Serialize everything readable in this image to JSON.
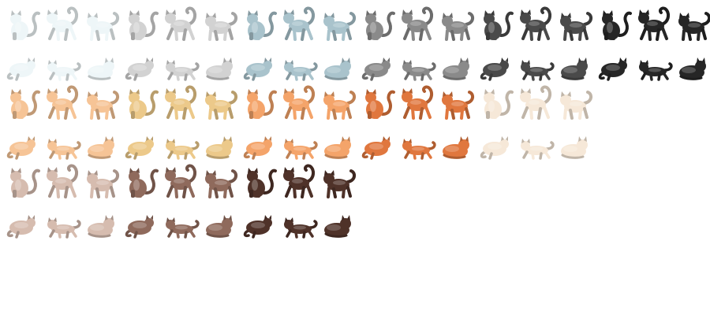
{
  "sheet": {
    "cell": 50,
    "poses": [
      "sit",
      "walk",
      "stand",
      "loaf"
    ],
    "rows": [
      {
        "pose_set": "upright",
        "colors": [
          {
            "name": "white",
            "hex": "#eef6f8"
          },
          {
            "name": "light-gray",
            "hex": "#d2d2d2"
          },
          {
            "name": "blue-gray",
            "hex": "#a9c3cc"
          },
          {
            "name": "gray",
            "hex": "#8a8a8a"
          },
          {
            "name": "dark-gray",
            "hex": "#4a4a4a"
          },
          {
            "name": "black",
            "hex": "#262626"
          }
        ]
      },
      {
        "pose_set": "lying",
        "colors": [
          {
            "name": "white",
            "hex": "#eef6f8"
          },
          {
            "name": "light-gray",
            "hex": "#d2d2d2"
          },
          {
            "name": "blue-gray",
            "hex": "#a9c3cc"
          },
          {
            "name": "gray",
            "hex": "#8a8a8a"
          },
          {
            "name": "dark-gray",
            "hex": "#4a4a4a"
          },
          {
            "name": "black",
            "hex": "#262626"
          }
        ]
      },
      {
        "pose_set": "upright",
        "colors": [
          {
            "name": "pale-ginger",
            "hex": "#f6c496"
          },
          {
            "name": "cream-gold",
            "hex": "#ecc98a"
          },
          {
            "name": "ginger",
            "hex": "#f4a46a"
          },
          {
            "name": "red-ginger",
            "hex": "#e0773e"
          },
          {
            "name": "cream",
            "hex": "#f6e8d8"
          }
        ]
      },
      {
        "pose_set": "lying",
        "colors": [
          {
            "name": "pale-ginger",
            "hex": "#f6c496"
          },
          {
            "name": "cream-gold",
            "hex": "#ecc98a"
          },
          {
            "name": "ginger",
            "hex": "#f4a46a"
          },
          {
            "name": "red-ginger",
            "hex": "#e0773e"
          },
          {
            "name": "cream",
            "hex": "#f6e8d8"
          }
        ]
      },
      {
        "pose_set": "upright",
        "colors": [
          {
            "name": "fawn",
            "hex": "#d6bcaf"
          },
          {
            "name": "brown",
            "hex": "#8f6a5c"
          },
          {
            "name": "dark-brown",
            "hex": "#4f3229"
          }
        ]
      },
      {
        "pose_set": "lying",
        "colors": [
          {
            "name": "fawn",
            "hex": "#d6bcaf"
          },
          {
            "name": "brown",
            "hex": "#8f6a5c"
          },
          {
            "name": "dark-brown",
            "hex": "#4f3229"
          }
        ]
      }
    ]
  }
}
